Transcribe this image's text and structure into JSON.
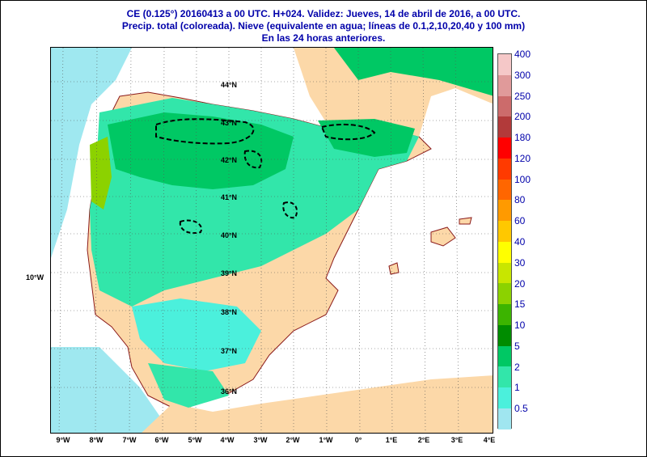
{
  "title": {
    "line1": "CE (0.125°) 20160413 a 00 UTC.  H+024. Validez: Jueves, 14 de abril de 2016,  a  00 UTC.",
    "line2": "Precip. total (coloreada). Nieve (equivalente en agua; líneas de 0.1,2,10,20,40 y 100 mm)",
    "line3": "En las 24 horas anteriores."
  },
  "x_ticks": [
    "9°W",
    "8°W",
    "7°W",
    "6°W",
    "5°W",
    "4°W",
    "3°W",
    "2°W",
    "1°W",
    "0°",
    "1°E",
    "2°E",
    "3°E",
    "4°E"
  ],
  "y_outer_label": "10°W",
  "lat_labels": [
    "44°N",
    "43°N",
    "42°N",
    "41°N",
    "40°N",
    "39°N",
    "38°N",
    "37°N",
    "36°N"
  ],
  "legend": {
    "levels": [
      "400",
      "300",
      "250",
      "200",
      "180",
      "120",
      "100",
      "80",
      "60",
      "40",
      "30",
      "20",
      "15",
      "10",
      "5",
      "2",
      "1",
      "0.5"
    ],
    "colors": [
      "#f5c8c8",
      "#e09a9a",
      "#cc6b6b",
      "#b23a3a",
      "#ff0000",
      "#ff3a00",
      "#ff6600",
      "#ff9a00",
      "#ffc800",
      "#ffff00",
      "#c8e600",
      "#8cd200",
      "#3cb400",
      "#008c00",
      "#00c864",
      "#32e6aa",
      "#4bf0dc",
      "#a0e6f0"
    ],
    "label_color": "#0000aa"
  },
  "colors": {
    "sea": "#ffffff",
    "land_dry": "#fcd8a8",
    "border": "#8b1a1a",
    "snow_line": "#000000"
  }
}
